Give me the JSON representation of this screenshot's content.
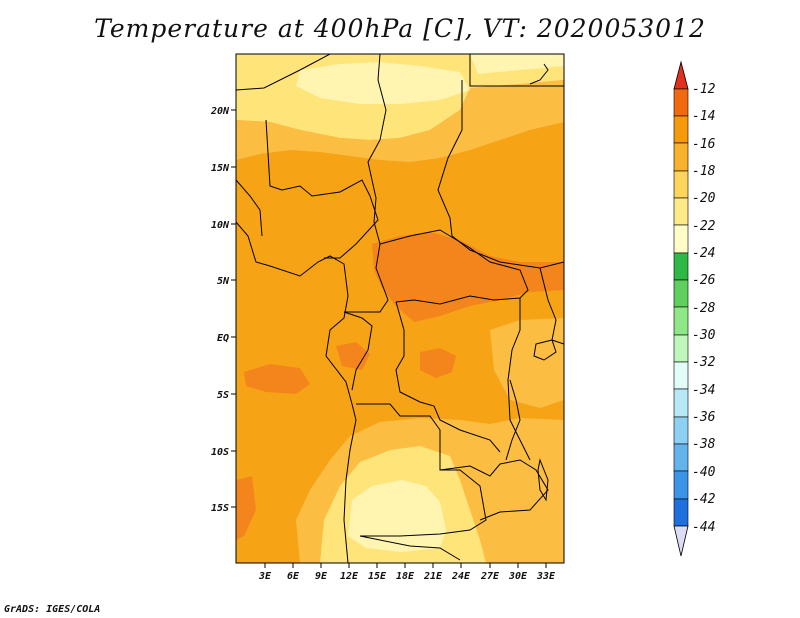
{
  "title": "Temperature at 400hPa [C], VT: 2020053012",
  "footer": "GrADS: IGES/COLA",
  "map": {
    "lat_ticks": [
      "20N",
      "15N",
      "10N",
      "5N",
      "EQ",
      "5S",
      "10S",
      "15S"
    ],
    "lon_ticks": [
      "3E",
      "6E",
      "9E",
      "12E",
      "15E",
      "18E",
      "21E",
      "24E",
      "27E",
      "30E",
      "33E"
    ],
    "colors": {
      "pale": "#fff5b0",
      "light": "#ffe47a",
      "mid": "#fbbd42",
      "base": "#f7a316",
      "dark": "#f3851c",
      "border": "#000000"
    }
  },
  "colorbar": {
    "labels": [
      "-12",
      "-14",
      "-16",
      "-18",
      "-20",
      "-22",
      "-24",
      "-26",
      "-28",
      "-30",
      "-32",
      "-34",
      "-36",
      "-38",
      "-40",
      "-42",
      "-44"
    ],
    "colors": [
      "#e3301e",
      "#f26a10",
      "#f59a0c",
      "#f8b32e",
      "#fcd55c",
      "#fdeb8a",
      "#fffcc8",
      "#2fb845",
      "#5fd05e",
      "#8ee888",
      "#bff6bc",
      "#e2fcf8",
      "#b6e8f6",
      "#8ed0f2",
      "#64b4ec",
      "#3c94e6",
      "#1e70dc",
      "#1450c6",
      "#0c2f9e",
      "#0a0a6e",
      "#dcdcf4"
    ]
  }
}
